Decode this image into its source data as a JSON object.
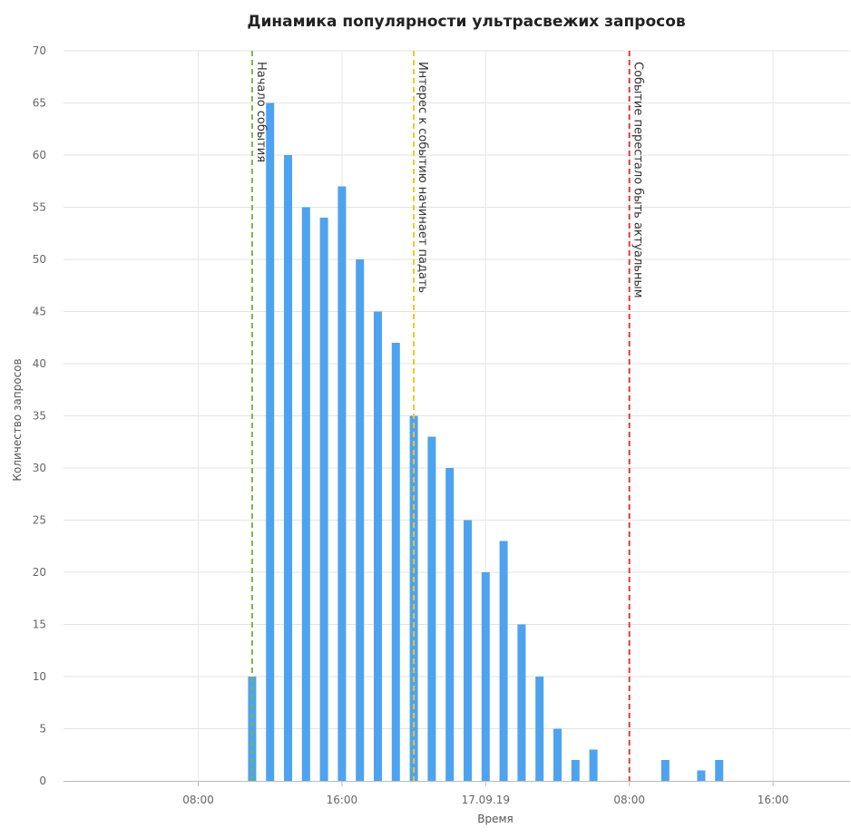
{
  "chart_data": {
    "type": "bar",
    "title": "Динамика популярности ультрасвежих запросов",
    "xlabel": "Время",
    "ylabel": "Количество запросов",
    "ylim": [
      0,
      70
    ],
    "y_ticks": [
      0,
      5,
      10,
      15,
      20,
      25,
      30,
      35,
      40,
      45,
      50,
      55,
      60,
      65,
      70
    ],
    "x_unit": "hours since 16.09.19 00:00",
    "xlim": [
      0.5,
      45
    ],
    "x_ticks": [
      {
        "x": 8,
        "label": "08:00"
      },
      {
        "x": 16,
        "label": "16:00"
      },
      {
        "x": 24,
        "label": "17.09.19"
      },
      {
        "x": 32,
        "label": "08:00"
      },
      {
        "x": 40,
        "label": "16:00"
      }
    ],
    "grid": true,
    "bar_color": "#4da3ef",
    "bars": [
      {
        "x": 11,
        "value": 10
      },
      {
        "x": 12,
        "value": 65
      },
      {
        "x": 13,
        "value": 60
      },
      {
        "x": 14,
        "value": 55
      },
      {
        "x": 15,
        "value": 54
      },
      {
        "x": 16,
        "value": 57
      },
      {
        "x": 17,
        "value": 50
      },
      {
        "x": 18,
        "value": 45
      },
      {
        "x": 19,
        "value": 42
      },
      {
        "x": 20,
        "value": 35
      },
      {
        "x": 21,
        "value": 33
      },
      {
        "x": 22,
        "value": 30
      },
      {
        "x": 23,
        "value": 25
      },
      {
        "x": 24,
        "value": 20
      },
      {
        "x": 25,
        "value": 23
      },
      {
        "x": 26,
        "value": 15
      },
      {
        "x": 27,
        "value": 10
      },
      {
        "x": 28,
        "value": 5
      },
      {
        "x": 29,
        "value": 2
      },
      {
        "x": 30,
        "value": 3
      },
      {
        "x": 34,
        "value": 2
      },
      {
        "x": 36,
        "value": 1
      },
      {
        "x": 37,
        "value": 2
      }
    ],
    "annotations": [
      {
        "x": 11,
        "label": "Начало события",
        "color": "#7cb342"
      },
      {
        "x": 20,
        "label": "Интерес к событию начинает падать",
        "color": "#f5c518"
      },
      {
        "x": 32,
        "label": "Событие перестало быть актуальным",
        "color": "#e53935"
      }
    ]
  }
}
